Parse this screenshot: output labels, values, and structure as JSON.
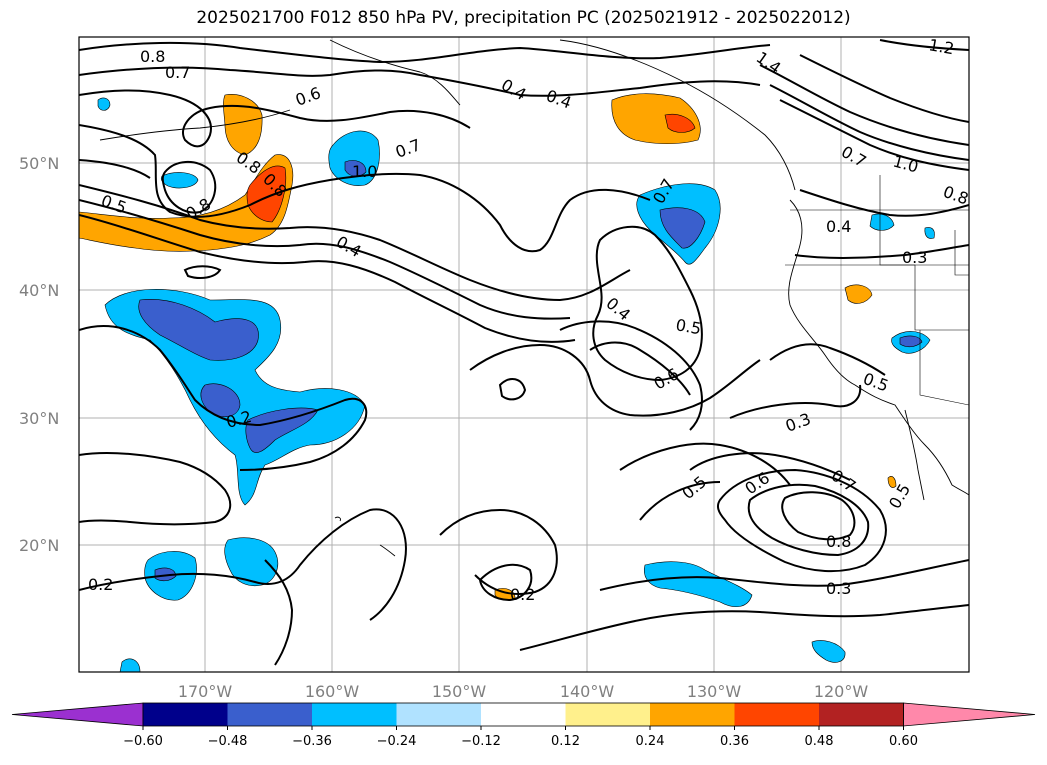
{
  "title": "2025021700 F012 850 hPa PV, precipitation PC (2025021912 - 2025022012)",
  "lat_labels": [
    "50°N",
    "40°N",
    "30°N",
    "20°N"
  ],
  "lon_labels": [
    "170°W",
    "160°W",
    "150°W",
    "140°W",
    "130°W",
    "120°W"
  ],
  "contour_labels": [
    "0.8",
    "0.7",
    "0.6",
    "0.4",
    "0.4",
    "0.7",
    "1.0",
    "0.8",
    "0.8",
    "0.5",
    "0.8",
    "0.4",
    "0.7",
    "0.4",
    "0.5",
    "0.6",
    "0.4",
    "0.3",
    "0.5",
    "0.3",
    "0.2",
    "0.5",
    "0.6",
    "0.7",
    "0.5",
    "0.8",
    "0.3",
    "0.2",
    "0.2",
    "1.2",
    "1.4",
    "1.0",
    "0.8",
    "0.7"
  ],
  "colorbar": {
    "ticks": [
      "−0.60",
      "−0.48",
      "−0.36",
      "−0.24",
      "−0.12",
      "0.12",
      "0.24",
      "0.36",
      "0.48",
      "0.60"
    ],
    "colors": [
      "#9b30d0",
      "#00008b",
      "#3a5fcd",
      "#00bfff",
      "#b0e2ff",
      "#ffffff",
      "#fff08c",
      "#ffa500",
      "#ff4500",
      "#b22222",
      "#ff88aa"
    ]
  },
  "colors": {
    "neg_strong": "#3a5fcd",
    "neg_mid": "#00bfff",
    "neg_light": "#b0e2ff",
    "pos_light": "#fff08c",
    "pos_mid": "#ffa500",
    "pos_strong": "#ff4500"
  }
}
